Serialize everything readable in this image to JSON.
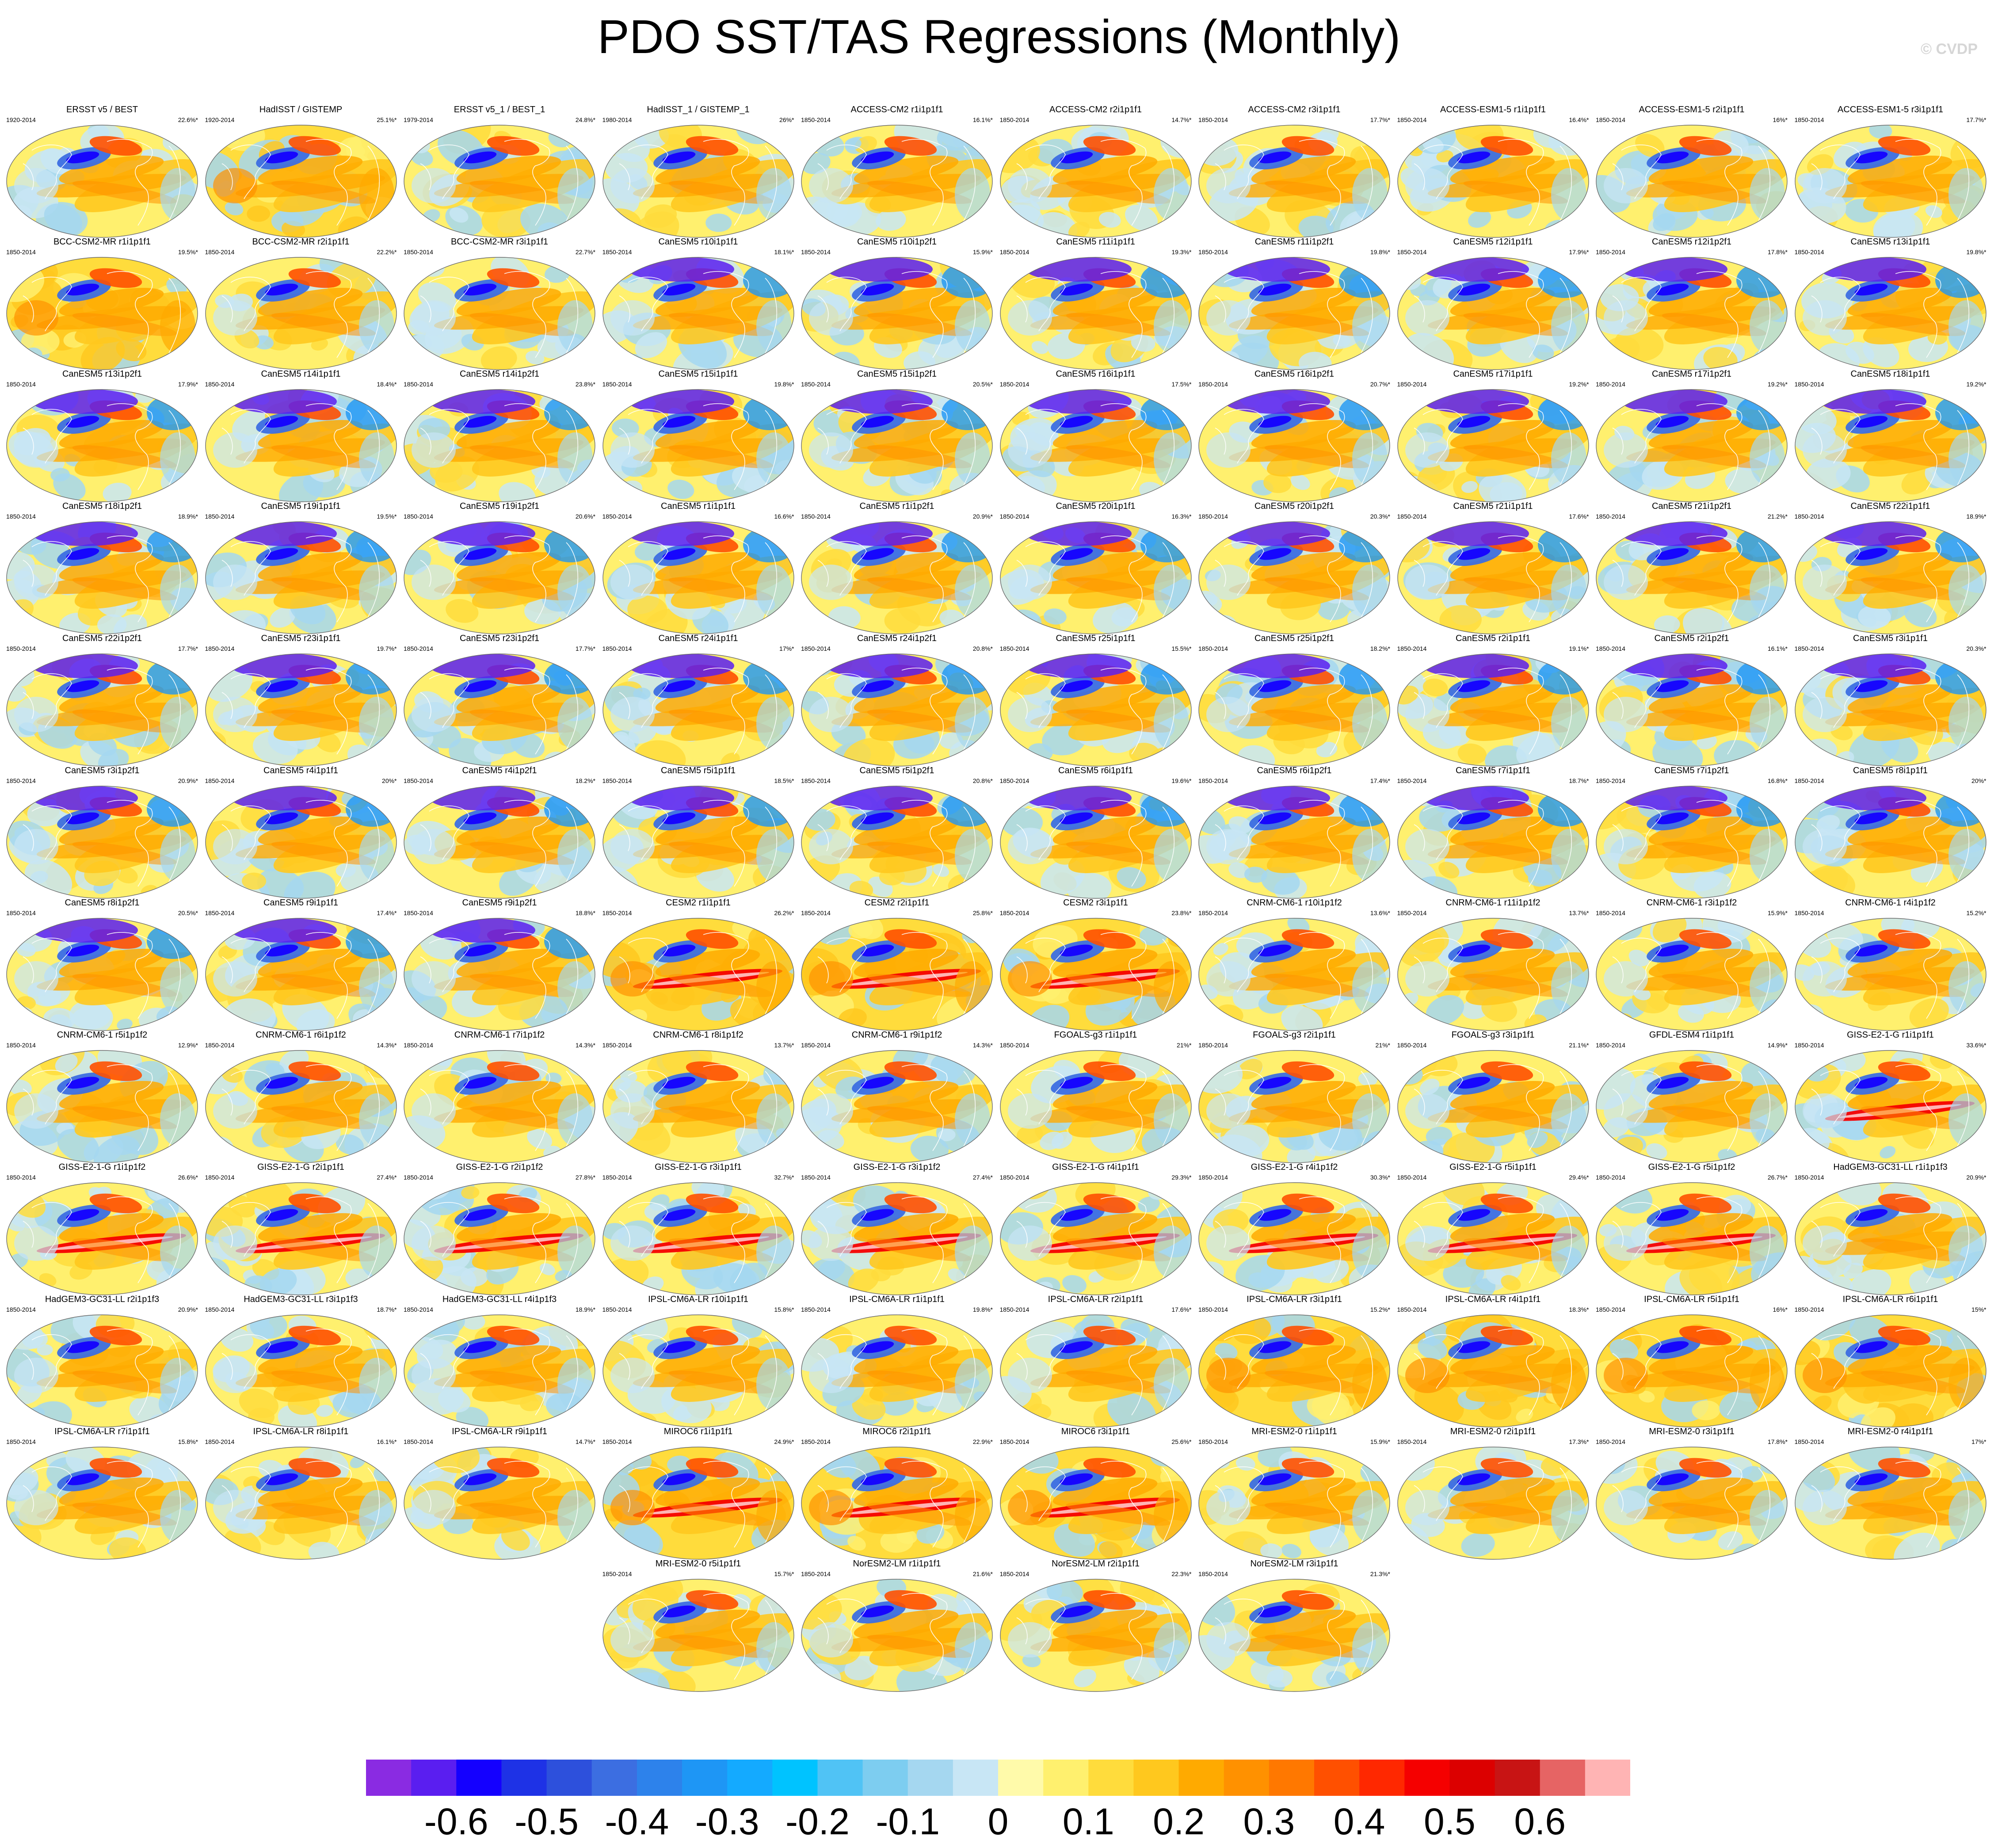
{
  "title": "PDO SST/TAS Regressions (Monthly)",
  "copyright": "© CVDP",
  "chart_data": {
    "type": "heatmap",
    "title": "PDO SST/TAS Regressions (Monthly)",
    "panels": [
      {
        "title": "ERSST v5 / BEST",
        "years": "1920-2014",
        "pct": "22.6%*"
      },
      {
        "title": "HadISST / GISTEMP",
        "years": "1920-2014",
        "pct": "25.1%*"
      },
      {
        "title": "ERSST v5_1 / BEST_1",
        "years": "1979-2014",
        "pct": "24.8%*"
      },
      {
        "title": "HadISST_1 / GISTEMP_1",
        "years": "1980-2014",
        "pct": "26%*"
      },
      {
        "title": "ACCESS-CM2 r1i1p1f1",
        "years": "1850-2014",
        "pct": "16.1%*"
      },
      {
        "title": "ACCESS-CM2 r2i1p1f1",
        "years": "1850-2014",
        "pct": "14.7%*"
      },
      {
        "title": "ACCESS-CM2 r3i1p1f1",
        "years": "1850-2014",
        "pct": "17.7%*"
      },
      {
        "title": "ACCESS-ESM1-5 r1i1p1f1",
        "years": "1850-2014",
        "pct": "16.4%*"
      },
      {
        "title": "ACCESS-ESM1-5 r2i1p1f1",
        "years": "1850-2014",
        "pct": "16%*"
      },
      {
        "title": "ACCESS-ESM1-5 r3i1p1f1",
        "years": "1850-2014",
        "pct": "17.7%*"
      },
      {
        "title": "BCC-CSM2-MR r1i1p1f1",
        "years": "1850-2014",
        "pct": "19.5%*"
      },
      {
        "title": "BCC-CSM2-MR r2i1p1f1",
        "years": "1850-2014",
        "pct": "22.2%*"
      },
      {
        "title": "BCC-CSM2-MR r3i1p1f1",
        "years": "1850-2014",
        "pct": "22.7%*"
      },
      {
        "title": "CanESM5 r10i1p1f1",
        "years": "1850-2014",
        "pct": "18.1%*"
      },
      {
        "title": "CanESM5 r10i1p2f1",
        "years": "1850-2014",
        "pct": "15.9%*"
      },
      {
        "title": "CanESM5 r11i1p1f1",
        "years": "1850-2014",
        "pct": "19.3%*"
      },
      {
        "title": "CanESM5 r11i1p2f1",
        "years": "1850-2014",
        "pct": "19.8%*"
      },
      {
        "title": "CanESM5 r12i1p1f1",
        "years": "1850-2014",
        "pct": "17.9%*"
      },
      {
        "title": "CanESM5 r12i1p2f1",
        "years": "1850-2014",
        "pct": "17.8%*"
      },
      {
        "title": "CanESM5 r13i1p1f1",
        "years": "1850-2014",
        "pct": "19.8%*"
      },
      {
        "title": "CanESM5 r13i1p2f1",
        "years": "1850-2014",
        "pct": "17.9%*"
      },
      {
        "title": "CanESM5 r14i1p1f1",
        "years": "1850-2014",
        "pct": "18.4%*"
      },
      {
        "title": "CanESM5 r14i1p2f1",
        "years": "1850-2014",
        "pct": "23.8%*"
      },
      {
        "title": "CanESM5 r15i1p1f1",
        "years": "1850-2014",
        "pct": "19.8%*"
      },
      {
        "title": "CanESM5 r15i1p2f1",
        "years": "1850-2014",
        "pct": "20.5%*"
      },
      {
        "title": "CanESM5 r16i1p1f1",
        "years": "1850-2014",
        "pct": "17.5%*"
      },
      {
        "title": "CanESM5 r16i1p2f1",
        "years": "1850-2014",
        "pct": "20.7%*"
      },
      {
        "title": "CanESM5 r17i1p1f1",
        "years": "1850-2014",
        "pct": "19.2%*"
      },
      {
        "title": "CanESM5 r17i1p2f1",
        "years": "1850-2014",
        "pct": "19.2%*"
      },
      {
        "title": "CanESM5 r18i1p1f1",
        "years": "1850-2014",
        "pct": "19.2%*"
      },
      {
        "title": "CanESM5 r18i1p2f1",
        "years": "1850-2014",
        "pct": "18.9%*"
      },
      {
        "title": "CanESM5 r19i1p1f1",
        "years": "1850-2014",
        "pct": "19.5%*"
      },
      {
        "title": "CanESM5 r19i1p2f1",
        "years": "1850-2014",
        "pct": "20.6%*"
      },
      {
        "title": "CanESM5 r1i1p1f1",
        "years": "1850-2014",
        "pct": "16.6%*"
      },
      {
        "title": "CanESM5 r1i1p2f1",
        "years": "1850-2014",
        "pct": "20.9%*"
      },
      {
        "title": "CanESM5 r20i1p1f1",
        "years": "1850-2014",
        "pct": "16.3%*"
      },
      {
        "title": "CanESM5 r20i1p2f1",
        "years": "1850-2014",
        "pct": "20.3%*"
      },
      {
        "title": "CanESM5 r21i1p1f1",
        "years": "1850-2014",
        "pct": "17.6%*"
      },
      {
        "title": "CanESM5 r21i1p2f1",
        "years": "1850-2014",
        "pct": "21.2%*"
      },
      {
        "title": "CanESM5 r22i1p1f1",
        "years": "1850-2014",
        "pct": "18.9%*"
      },
      {
        "title": "CanESM5 r22i1p2f1",
        "years": "1850-2014",
        "pct": "17.7%*"
      },
      {
        "title": "CanESM5 r23i1p1f1",
        "years": "1850-2014",
        "pct": "19.7%*"
      },
      {
        "title": "CanESM5 r23i1p2f1",
        "years": "1850-2014",
        "pct": "17.7%*"
      },
      {
        "title": "CanESM5 r24i1p1f1",
        "years": "1850-2014",
        "pct": "17%*"
      },
      {
        "title": "CanESM5 r24i1p2f1",
        "years": "1850-2014",
        "pct": "20.8%*"
      },
      {
        "title": "CanESM5 r25i1p1f1",
        "years": "1850-2014",
        "pct": "15.5%*"
      },
      {
        "title": "CanESM5 r25i1p2f1",
        "years": "1850-2014",
        "pct": "18.2%*"
      },
      {
        "title": "CanESM5 r2i1p1f1",
        "years": "1850-2014",
        "pct": "19.1%*"
      },
      {
        "title": "CanESM5 r2i1p2f1",
        "years": "1850-2014",
        "pct": "16.1%*"
      },
      {
        "title": "CanESM5 r3i1p1f1",
        "years": "1850-2014",
        "pct": "20.3%*"
      },
      {
        "title": "CanESM5 r3i1p2f1",
        "years": "1850-2014",
        "pct": "20.9%*"
      },
      {
        "title": "CanESM5 r4i1p1f1",
        "years": "1850-2014",
        "pct": "20%*"
      },
      {
        "title": "CanESM5 r4i1p2f1",
        "years": "1850-2014",
        "pct": "18.2%*"
      },
      {
        "title": "CanESM5 r5i1p1f1",
        "years": "1850-2014",
        "pct": "18.5%*"
      },
      {
        "title": "CanESM5 r5i1p2f1",
        "years": "1850-2014",
        "pct": "20.8%*"
      },
      {
        "title": "CanESM5 r6i1p1f1",
        "years": "1850-2014",
        "pct": "19.6%*"
      },
      {
        "title": "CanESM5 r6i1p2f1",
        "years": "1850-2014",
        "pct": "17.4%*"
      },
      {
        "title": "CanESM5 r7i1p1f1",
        "years": "1850-2014",
        "pct": "18.7%*"
      },
      {
        "title": "CanESM5 r7i1p2f1",
        "years": "1850-2014",
        "pct": "16.8%*"
      },
      {
        "title": "CanESM5 r8i1p1f1",
        "years": "1850-2014",
        "pct": "20%*"
      },
      {
        "title": "CanESM5 r8i1p2f1",
        "years": "1850-2014",
        "pct": "20.5%*"
      },
      {
        "title": "CanESM5 r9i1p1f1",
        "years": "1850-2014",
        "pct": "17.4%*"
      },
      {
        "title": "CanESM5 r9i1p2f1",
        "years": "1850-2014",
        "pct": "18.8%*"
      },
      {
        "title": "CESM2 r1i1p1f1",
        "years": "1850-2014",
        "pct": "26.2%*"
      },
      {
        "title": "CESM2 r2i1p1f1",
        "years": "1850-2014",
        "pct": "25.8%*"
      },
      {
        "title": "CESM2 r3i1p1f1",
        "years": "1850-2014",
        "pct": "23.8%*"
      },
      {
        "title": "CNRM-CM6-1 r10i1p1f2",
        "years": "1850-2014",
        "pct": "13.6%*"
      },
      {
        "title": "CNRM-CM6-1 r11i1p1f2",
        "years": "1850-2014",
        "pct": "13.7%*"
      },
      {
        "title": "CNRM-CM6-1 r3i1p1f2",
        "years": "1850-2014",
        "pct": "15.9%*"
      },
      {
        "title": "CNRM-CM6-1 r4i1p1f2",
        "years": "1850-2014",
        "pct": "15.2%*"
      },
      {
        "title": "CNRM-CM6-1 r5i1p1f2",
        "years": "1850-2014",
        "pct": "12.9%*"
      },
      {
        "title": "CNRM-CM6-1 r6i1p1f2",
        "years": "1850-2014",
        "pct": "14.3%*"
      },
      {
        "title": "CNRM-CM6-1 r7i1p1f2",
        "years": "1850-2014",
        "pct": "14.3%*"
      },
      {
        "title": "CNRM-CM6-1 r8i1p1f2",
        "years": "1850-2014",
        "pct": "13.7%*"
      },
      {
        "title": "CNRM-CM6-1 r9i1p1f2",
        "years": "1850-2014",
        "pct": "14.3%*"
      },
      {
        "title": "FGOALS-g3 r1i1p1f1",
        "years": "1850-2014",
        "pct": "21%*"
      },
      {
        "title": "FGOALS-g3 r2i1p1f1",
        "years": "1850-2014",
        "pct": "21%*"
      },
      {
        "title": "FGOALS-g3 r3i1p1f1",
        "years": "1850-2014",
        "pct": "21.1%*"
      },
      {
        "title": "GFDL-ESM4 r1i1p1f1",
        "years": "1850-2014",
        "pct": "14.9%*"
      },
      {
        "title": "GISS-E2-1-G r1i1p1f1",
        "years": "1850-2014",
        "pct": "33.6%*"
      },
      {
        "title": "GISS-E2-1-G r1i1p1f2",
        "years": "1850-2014",
        "pct": "26.6%*"
      },
      {
        "title": "GISS-E2-1-G r2i1p1f1",
        "years": "1850-2014",
        "pct": "27.4%*"
      },
      {
        "title": "GISS-E2-1-G r2i1p1f2",
        "years": "1850-2014",
        "pct": "27.8%*"
      },
      {
        "title": "GISS-E2-1-G r3i1p1f1",
        "years": "1850-2014",
        "pct": "32.7%*"
      },
      {
        "title": "GISS-E2-1-G r3i1p1f2",
        "years": "1850-2014",
        "pct": "27.4%*"
      },
      {
        "title": "GISS-E2-1-G r4i1p1f1",
        "years": "1850-2014",
        "pct": "29.3%*"
      },
      {
        "title": "GISS-E2-1-G r4i1p1f2",
        "years": "1850-2014",
        "pct": "30.3%*"
      },
      {
        "title": "GISS-E2-1-G r5i1p1f1",
        "years": "1850-2014",
        "pct": "29.4%*"
      },
      {
        "title": "GISS-E2-1-G r5i1p1f2",
        "years": "1850-2014",
        "pct": "26.7%*"
      },
      {
        "title": "HadGEM3-GC31-LL r1i1p1f3",
        "years": "1850-2014",
        "pct": "20.9%*"
      },
      {
        "title": "HadGEM3-GC31-LL r2i1p1f3",
        "years": "1850-2014",
        "pct": "20.9%*"
      },
      {
        "title": "HadGEM3-GC31-LL r3i1p1f3",
        "years": "1850-2014",
        "pct": "18.7%*"
      },
      {
        "title": "HadGEM3-GC31-LL r4i1p1f3",
        "years": "1850-2014",
        "pct": "18.9%*"
      },
      {
        "title": "IPSL-CM6A-LR r10i1p1f1",
        "years": "1850-2014",
        "pct": "15.8%*"
      },
      {
        "title": "IPSL-CM6A-LR r1i1p1f1",
        "years": "1850-2014",
        "pct": "19.8%*"
      },
      {
        "title": "IPSL-CM6A-LR r2i1p1f1",
        "years": "1850-2014",
        "pct": "17.6%*"
      },
      {
        "title": "IPSL-CM6A-LR r3i1p1f1",
        "years": "1850-2014",
        "pct": "15.2%*"
      },
      {
        "title": "IPSL-CM6A-LR r4i1p1f1",
        "years": "1850-2014",
        "pct": "18.3%*"
      },
      {
        "title": "IPSL-CM6A-LR r5i1p1f1",
        "years": "1850-2014",
        "pct": "16%*"
      },
      {
        "title": "IPSL-CM6A-LR r6i1p1f1",
        "years": "1850-2014",
        "pct": "15%*"
      },
      {
        "title": "IPSL-CM6A-LR r7i1p1f1",
        "years": "1850-2014",
        "pct": "15.8%*"
      },
      {
        "title": "IPSL-CM6A-LR r8i1p1f1",
        "years": "1850-2014",
        "pct": "16.1%*"
      },
      {
        "title": "IPSL-CM6A-LR r9i1p1f1",
        "years": "1850-2014",
        "pct": "14.7%*"
      },
      {
        "title": "MIROC6 r1i1p1f1",
        "years": "1850-2014",
        "pct": "24.9%*"
      },
      {
        "title": "MIROC6 r2i1p1f1",
        "years": "1850-2014",
        "pct": "22.9%*"
      },
      {
        "title": "MIROC6 r3i1p1f1",
        "years": "1850-2014",
        "pct": "25.6%*"
      },
      {
        "title": "MRI-ESM2-0 r1i1p1f1",
        "years": "1850-2014",
        "pct": "15.9%*"
      },
      {
        "title": "MRI-ESM2-0 r2i1p1f1",
        "years": "1850-2014",
        "pct": "17.3%*"
      },
      {
        "title": "MRI-ESM2-0 r3i1p1f1",
        "years": "1850-2014",
        "pct": "17.8%*"
      },
      {
        "title": "MRI-ESM2-0 r4i1p1f1",
        "years": "1850-2014",
        "pct": "17%*"
      },
      {
        "title": "MRI-ESM2-0 r5i1p1f1",
        "years": "1850-2014",
        "pct": "15.7%*"
      },
      {
        "title": "NorESM2-LM r1i1p1f1",
        "years": "1850-2014",
        "pct": "21.6%*"
      },
      {
        "title": "NorESM2-LM r2i1p1f1",
        "years": "1850-2014",
        "pct": "22.3%*"
      },
      {
        "title": "NorESM2-LM r3i1p1f1",
        "years": "1850-2014",
        "pct": "21.3%*"
      }
    ],
    "colorbar": {
      "colors": [
        "#8a2be2",
        "#5a1ef0",
        "#1400ff",
        "#1e32e6",
        "#2d50dc",
        "#3c6ee1",
        "#2d82eb",
        "#1e96f5",
        "#14aaff",
        "#00c3ff",
        "#50c3f5",
        "#7dcdf0",
        "#a5d7f0",
        "#c8e6f5",
        "#fffaaa",
        "#fff06e",
        "#ffdc3c",
        "#ffc81e",
        "#ffaa00",
        "#ff9100",
        "#ff7800",
        "#ff5000",
        "#ff2800",
        "#f50000",
        "#dc0000",
        "#c81414",
        "#e66464",
        "#ffb4b4"
      ],
      "tick_labels": [
        "-0.6",
        "-0.5",
        "-0.4",
        "-0.3",
        "-0.2",
        "-0.1",
        "0",
        "0.1",
        "0.2",
        "0.3",
        "0.4",
        "0.5",
        "0.6"
      ]
    }
  }
}
